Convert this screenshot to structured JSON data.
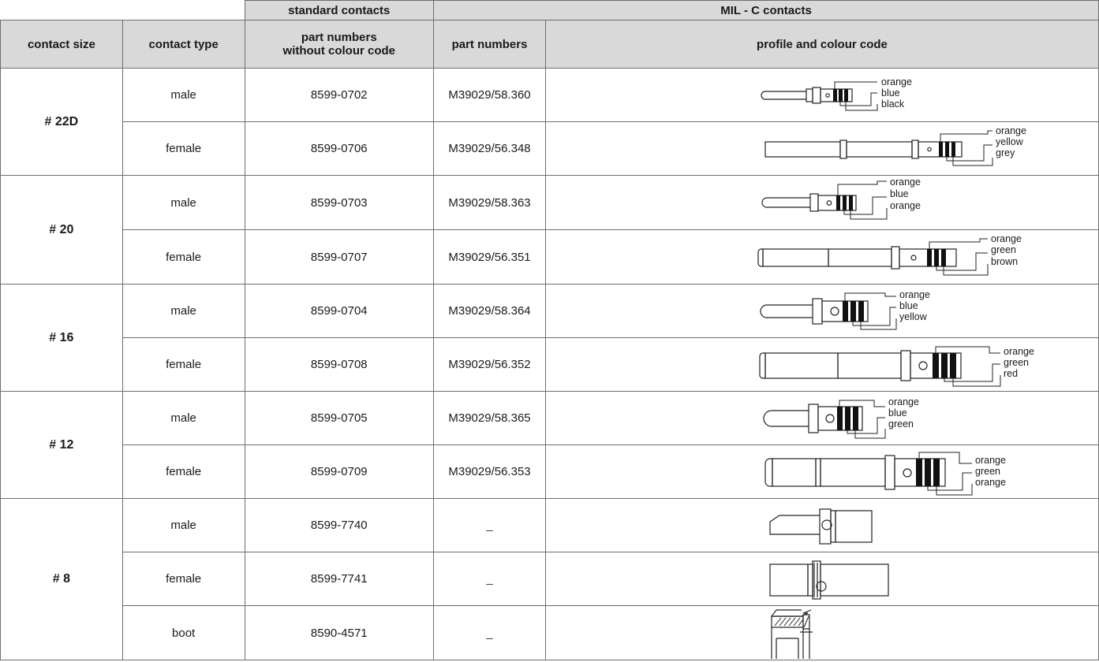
{
  "group_headers": {
    "standard": "standard contacts",
    "mil": "MIL - C contacts"
  },
  "column_headers": {
    "contact_size": "contact size",
    "contact_type": "contact type",
    "part_no_line1": "part numbers",
    "part_no_line2": "without colour code",
    "mil_part_numbers": "part numbers",
    "profile": "profile and colour code"
  },
  "sizes": [
    "# 22D",
    "# 20",
    "# 16",
    "# 12",
    "# 8"
  ],
  "rows": [
    {
      "type": "male",
      "std": "8599-0702",
      "mil": "M39029/58.360",
      "colours": [
        "orange",
        "blue",
        "black"
      ]
    },
    {
      "type": "female",
      "std": "8599-0706",
      "mil": "M39029/56.348",
      "colours": [
        "orange",
        "yellow",
        "grey"
      ]
    },
    {
      "type": "male",
      "std": "8599-0703",
      "mil": "M39029/58.363",
      "colours": [
        "orange",
        "blue",
        "orange"
      ]
    },
    {
      "type": "female",
      "std": "8599-0707",
      "mil": "M39029/56.351",
      "colours": [
        "orange",
        "green",
        "brown"
      ]
    },
    {
      "type": "male",
      "std": "8599-0704",
      "mil": "M39029/58.364",
      "colours": [
        "orange",
        "blue",
        "yellow"
      ]
    },
    {
      "type": "female",
      "std": "8599-0708",
      "mil": "M39029/56.352",
      "colours": [
        "orange",
        "green",
        "red"
      ]
    },
    {
      "type": "male",
      "std": "8599-0705",
      "mil": "M39029/58.365",
      "colours": [
        "orange",
        "blue",
        "green"
      ]
    },
    {
      "type": "female",
      "std": "8599-0709",
      "mil": "M39029/56.353",
      "colours": [
        "orange",
        "green",
        "orange"
      ]
    },
    {
      "type": "male",
      "std": "8599-7740",
      "mil": "_"
    },
    {
      "type": "female",
      "std": "8599-7741",
      "mil": "_"
    },
    {
      "type": "boot",
      "std": "8590-4571",
      "mil": "_"
    }
  ]
}
